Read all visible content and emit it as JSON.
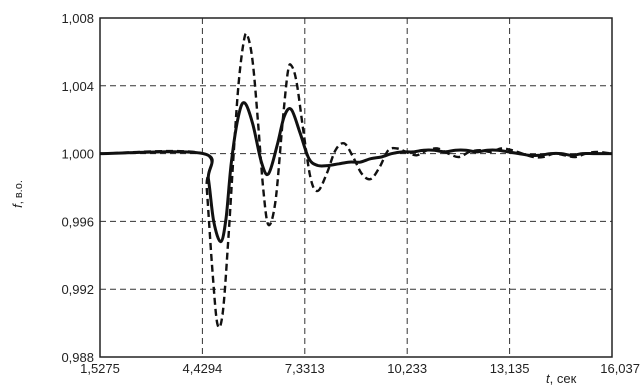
{
  "chart_data": {
    "type": "line",
    "title": "",
    "xlabel_var": "t",
    "xlabel_unit": ", сек",
    "ylabel_var": "f",
    "ylabel_unit": ", в.о.",
    "xlim": [
      1.5275,
      16.037
    ],
    "ylim": [
      0.988,
      1.008
    ],
    "x_ticks": [
      1.5275,
      4.4294,
      7.3313,
      10.233,
      13.135,
      16.037
    ],
    "x_tick_labels": [
      "1,5275",
      "4,4294",
      "7,3313",
      "10,233",
      "13,135",
      "16,037"
    ],
    "y_ticks": [
      0.988,
      0.992,
      0.996,
      1.0,
      1.004,
      1.008
    ],
    "y_tick_labels": [
      "0,988",
      "0,992",
      "0,996",
      "1,000",
      "1,004",
      "1,008"
    ],
    "grid": true,
    "legend": "none",
    "series": [
      {
        "style": "solid",
        "color": "#111111",
        "x": [
          1.5275,
          4.45,
          4.6,
          4.75,
          4.95,
          5.1,
          5.25,
          5.45,
          5.62,
          5.85,
          6.1,
          6.3,
          6.55,
          6.75,
          6.95,
          7.2,
          7.45,
          7.7,
          8.0,
          8.3,
          8.6,
          8.9,
          9.2,
          9.5,
          9.8,
          10.1,
          10.4,
          10.7,
          11.0,
          11.3,
          11.6,
          11.9,
          12.2,
          12.5,
          12.8,
          13.1,
          13.4,
          13.7,
          14.0,
          14.3,
          14.6,
          14.9,
          15.2,
          15.5,
          15.8,
          16.037
        ],
        "y": [
          1.0,
          1.0,
          0.9985,
          0.996,
          0.9948,
          0.9962,
          0.9995,
          1.0022,
          1.003,
          1.0018,
          0.9995,
          0.9988,
          1.0005,
          1.0022,
          1.0026,
          1.0012,
          0.9997,
          0.9993,
          0.9993,
          0.9994,
          0.9995,
          0.9995,
          0.9997,
          0.9998,
          1.0,
          1.0001,
          1.0001,
          1.0002,
          1.0002,
          1.0001,
          1.0002,
          1.0002,
          1.0001,
          1.0002,
          1.0002,
          1.0001,
          1.0,
          0.9999,
          0.9999,
          1.0,
          1.0,
          0.9999,
          1.0,
          1.0,
          1.0,
          1.0
        ]
      },
      {
        "style": "dashed",
        "color": "#111111",
        "x": [
          1.5275,
          4.45,
          4.55,
          4.7,
          4.85,
          5.0,
          5.15,
          5.3,
          5.45,
          5.6,
          5.7,
          5.85,
          6.0,
          6.15,
          6.3,
          6.5,
          6.7,
          6.85,
          6.95,
          7.1,
          7.3,
          7.5,
          7.7,
          7.95,
          8.2,
          8.45,
          8.7,
          8.95,
          9.2,
          9.45,
          9.7,
          9.95,
          10.2,
          10.5,
          10.8,
          11.1,
          11.4,
          11.7,
          12.0,
          12.3,
          12.6,
          12.9,
          13.2,
          13.5,
          13.8,
          14.1,
          14.4,
          14.7,
          15.0,
          15.3,
          15.6,
          16.037
        ],
        "y": [
          1.0,
          1.0,
          0.998,
          0.9935,
          0.99,
          0.9905,
          0.9945,
          0.9995,
          1.004,
          1.0066,
          1.007,
          1.0055,
          1.002,
          0.998,
          0.9958,
          0.9972,
          1.0018,
          1.0048,
          1.0052,
          1.0042,
          1.0012,
          0.9985,
          0.9978,
          0.9988,
          1.0002,
          1.0006,
          0.9998,
          0.9988,
          0.9985,
          0.9992,
          1.0002,
          1.0003,
          1.0001,
          0.9999,
          1.0002,
          1.0003,
          1.0,
          0.9998,
          1.0001,
          1.0002,
          1.0001,
          1.0003,
          1.0002,
          1.0,
          0.9998,
          0.9998,
          1.0,
          0.9999,
          0.9998,
          1.0,
          1.0001,
          1.0
        ]
      }
    ]
  }
}
